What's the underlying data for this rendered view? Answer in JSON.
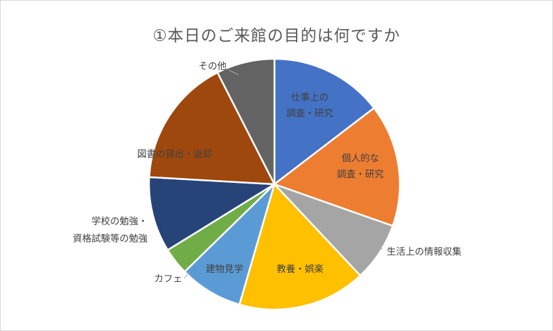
{
  "chart_data": {
    "type": "pie",
    "title": "①本日のご来館の目的は何ですか",
    "start_angle_deg": 0,
    "direction": "clockwise",
    "slices": [
      {
        "label_lines": [
          "仕事上の",
          "調査・研究"
        ],
        "value": 14.6,
        "color": "#4472c4",
        "label_pos": "inside"
      },
      {
        "label_lines": [
          "個人的な",
          "調査・研究"
        ],
        "value": 15.8,
        "color": "#ed7d31",
        "label_pos": "inside"
      },
      {
        "label_lines": [
          "生活上の情報収集"
        ],
        "value": 7.6,
        "color": "#a5a5a5",
        "label_pos": "outside"
      },
      {
        "label_lines": [
          "教養・娯楽"
        ],
        "value": 16.5,
        "color": "#ffc000",
        "label_pos": "inside"
      },
      {
        "label_lines": [
          "建物見学"
        ],
        "value": 8.2,
        "color": "#5b9bd5",
        "label_pos": "inside"
      },
      {
        "label_lines": [
          "カフェ"
        ],
        "value": 3.5,
        "color": "#70ad47",
        "label_pos": "outside"
      },
      {
        "label_lines": [
          "学校の勉強・",
          "資格試験等の勉強"
        ],
        "value": 9.7,
        "color": "#264478",
        "label_pos": "outside"
      },
      {
        "label_lines": [
          "図書の貸出・返却"
        ],
        "value": 16.6,
        "color": "#9e480e",
        "label_pos": "inside"
      },
      {
        "label_lines": [
          "その他"
        ],
        "value": 7.5,
        "color": "#636363",
        "label_pos": "outside"
      }
    ]
  }
}
